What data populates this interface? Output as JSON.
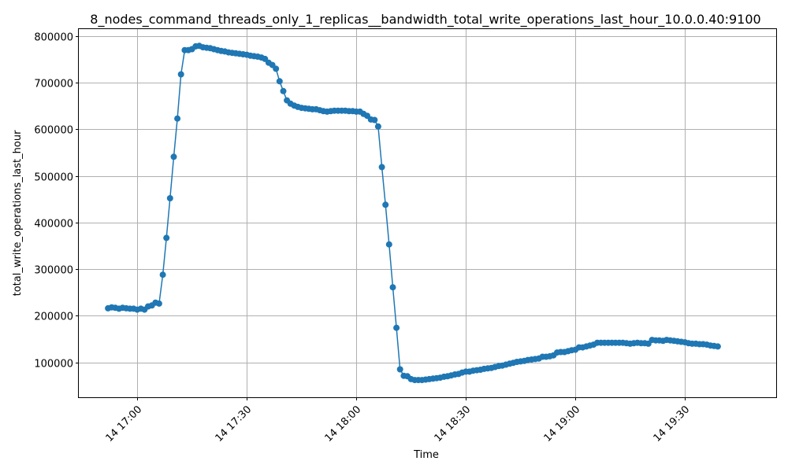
{
  "chart_data": {
    "type": "line",
    "title": "8_nodes_command_threads_only_1_replicas__bandwidth_total_write_operations_last_hour_10.0.0.40:9100",
    "xlabel": "Time",
    "ylabel": "total_write_operations_last_hour",
    "x_is_time": true,
    "x_ticks": [
      {
        "t": "17:00",
        "label": "14 17:00"
      },
      {
        "t": "17:30",
        "label": "14 17:30"
      },
      {
        "t": "18:00",
        "label": "14 18:00"
      },
      {
        "t": "18:30",
        "label": "14 18:30"
      },
      {
        "t": "19:00",
        "label": "14 19:00"
      },
      {
        "t": "19:30",
        "label": "14 19:30"
      }
    ],
    "xlim": [
      "16:44",
      "19:55"
    ],
    "ylim": [
      25000,
      815000
    ],
    "y_ticks": [
      100000,
      200000,
      300000,
      400000,
      500000,
      600000,
      700000,
      800000
    ],
    "grid": true,
    "marker": "circle",
    "color": "#1f77b4",
    "series": [
      {
        "points": [
          [
            "16:52",
            216000
          ],
          [
            "16:53",
            218000
          ],
          [
            "16:54",
            217000
          ],
          [
            "16:55",
            215000
          ],
          [
            "16:56",
            217000
          ],
          [
            "16:57",
            216000
          ],
          [
            "16:58",
            215000
          ],
          [
            "16:59",
            215000
          ],
          [
            "17:00",
            213000
          ],
          [
            "17:01",
            215000
          ],
          [
            "17:02",
            213000
          ],
          [
            "17:03",
            220000
          ],
          [
            "17:04",
            222000
          ],
          [
            "17:05",
            228000
          ],
          [
            "17:06",
            226000
          ],
          [
            "17:07",
            288000
          ],
          [
            "17:08",
            367000
          ],
          [
            "17:09",
            452000
          ],
          [
            "17:10",
            541000
          ],
          [
            "17:11",
            623000
          ],
          [
            "17:12",
            718000
          ],
          [
            "17:13",
            770000
          ],
          [
            "17:14",
            770000
          ],
          [
            "17:15",
            772000
          ],
          [
            "17:16",
            778000
          ],
          [
            "17:17",
            779000
          ],
          [
            "17:18",
            776000
          ],
          [
            "17:19",
            775000
          ],
          [
            "17:20",
            774000
          ],
          [
            "17:21",
            772000
          ],
          [
            "17:22",
            770000
          ],
          [
            "17:23",
            768000
          ],
          [
            "17:24",
            767000
          ],
          [
            "17:25",
            765000
          ],
          [
            "17:26",
            764000
          ],
          [
            "17:27",
            763000
          ],
          [
            "17:28",
            762000
          ],
          [
            "17:29",
            761000
          ],
          [
            "17:30",
            760000
          ],
          [
            "17:31",
            758000
          ],
          [
            "17:32",
            757000
          ],
          [
            "17:33",
            756000
          ],
          [
            "17:34",
            754000
          ],
          [
            "17:35",
            751000
          ],
          [
            "17:36",
            743000
          ],
          [
            "17:37",
            738000
          ],
          [
            "17:38",
            730000
          ],
          [
            "17:39",
            703000
          ],
          [
            "17:40",
            682000
          ],
          [
            "17:41",
            662000
          ],
          [
            "17:42",
            655000
          ],
          [
            "17:43",
            651000
          ],
          [
            "17:44",
            648000
          ],
          [
            "17:45",
            646000
          ],
          [
            "17:46",
            645000
          ],
          [
            "17:47",
            644000
          ],
          [
            "17:48",
            643000
          ],
          [
            "17:49",
            643000
          ],
          [
            "17:50",
            641000
          ],
          [
            "17:51",
            639000
          ],
          [
            "17:52",
            638000
          ],
          [
            "17:53",
            639000
          ],
          [
            "17:54",
            640000
          ],
          [
            "17:55",
            640000
          ],
          [
            "17:56",
            640000
          ],
          [
            "17:57",
            640000
          ],
          [
            "17:58",
            639000
          ],
          [
            "17:59",
            639000
          ],
          [
            "18:00",
            638000
          ],
          [
            "18:01",
            638000
          ],
          [
            "18:02",
            633000
          ],
          [
            "18:03",
            629000
          ],
          [
            "18:04",
            621000
          ],
          [
            "18:05",
            620000
          ],
          [
            "18:06",
            606000
          ],
          [
            "18:07",
            519000
          ],
          [
            "18:08",
            438000
          ],
          [
            "18:09",
            353000
          ],
          [
            "18:10",
            261000
          ],
          [
            "18:11",
            174000
          ],
          [
            "18:12",
            85000
          ],
          [
            "18:13",
            71000
          ],
          [
            "18:14",
            70000
          ],
          [
            "18:15",
            64000
          ],
          [
            "18:16",
            62000
          ],
          [
            "18:17",
            62000
          ],
          [
            "18:18",
            62000
          ],
          [
            "18:19",
            63000
          ],
          [
            "18:20",
            64000
          ],
          [
            "18:21",
            65000
          ],
          [
            "18:22",
            66000
          ],
          [
            "18:23",
            67000
          ],
          [
            "18:24",
            69000
          ],
          [
            "18:25",
            70000
          ],
          [
            "18:26",
            72000
          ],
          [
            "18:27",
            74000
          ],
          [
            "18:28",
            75000
          ],
          [
            "18:29",
            78000
          ],
          [
            "18:30",
            80000
          ],
          [
            "18:31",
            80000
          ],
          [
            "18:32",
            82000
          ],
          [
            "18:33",
            83000
          ],
          [
            "18:34",
            84000
          ],
          [
            "18:35",
            86000
          ],
          [
            "18:36",
            87000
          ],
          [
            "18:37",
            88000
          ],
          [
            "18:38",
            90000
          ],
          [
            "18:39",
            92000
          ],
          [
            "18:40",
            93000
          ],
          [
            "18:41",
            95000
          ],
          [
            "18:42",
            97000
          ],
          [
            "18:43",
            99000
          ],
          [
            "18:44",
            101000
          ],
          [
            "18:45",
            102000
          ],
          [
            "18:46",
            103000
          ],
          [
            "18:47",
            105000
          ],
          [
            "18:48",
            106000
          ],
          [
            "18:49",
            107000
          ],
          [
            "18:50",
            108000
          ],
          [
            "18:51",
            112000
          ],
          [
            "18:52",
            112000
          ],
          [
            "18:53",
            113000
          ],
          [
            "18:54",
            115000
          ],
          [
            "18:55",
            121000
          ],
          [
            "18:56",
            122000
          ],
          [
            "18:57",
            122000
          ],
          [
            "18:58",
            124000
          ],
          [
            "18:59",
            126000
          ],
          [
            "19:00",
            127000
          ],
          [
            "19:01",
            132000
          ],
          [
            "19:02",
            132000
          ],
          [
            "19:03",
            134000
          ],
          [
            "19:04",
            136000
          ],
          [
            "19:05",
            138000
          ],
          [
            "19:06",
            142000
          ],
          [
            "19:07",
            142000
          ],
          [
            "19:08",
            142000
          ],
          [
            "19:09",
            142000
          ],
          [
            "19:10",
            142000
          ],
          [
            "19:11",
            142000
          ],
          [
            "19:12",
            142000
          ],
          [
            "19:13",
            142000
          ],
          [
            "19:14",
            141000
          ],
          [
            "19:15",
            140000
          ],
          [
            "19:16",
            141000
          ],
          [
            "19:17",
            142000
          ],
          [
            "19:18",
            141000
          ],
          [
            "19:19",
            141000
          ],
          [
            "19:20",
            140000
          ],
          [
            "19:21",
            148000
          ],
          [
            "19:22",
            147000
          ],
          [
            "19:23",
            147000
          ],
          [
            "19:24",
            146000
          ],
          [
            "19:25",
            148000
          ],
          [
            "19:26",
            147000
          ],
          [
            "19:27",
            146000
          ],
          [
            "19:28",
            145000
          ],
          [
            "19:29",
            144000
          ],
          [
            "19:30",
            143000
          ],
          [
            "19:31",
            141000
          ],
          [
            "19:32",
            140000
          ],
          [
            "19:33",
            140000
          ],
          [
            "19:34",
            139000
          ],
          [
            "19:35",
            139000
          ],
          [
            "19:36",
            138000
          ],
          [
            "19:37",
            136000
          ],
          [
            "19:38",
            135000
          ],
          [
            "19:39",
            134000
          ]
        ]
      }
    ]
  }
}
